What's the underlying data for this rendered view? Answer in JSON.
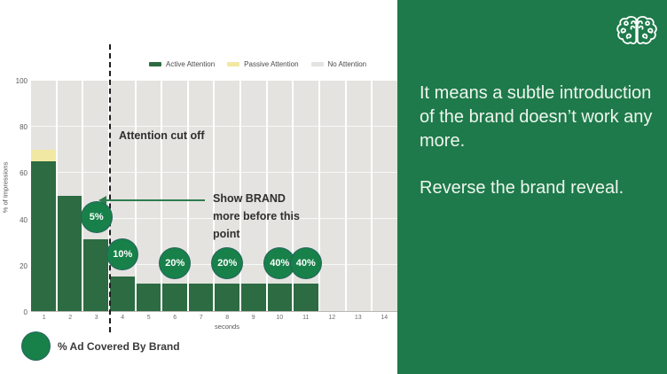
{
  "right_panel": {
    "bg_color": "#1e7a4a",
    "paragraph1": "It means a subtle introduction of the brand doesn’t work any more.",
    "paragraph2": "Reverse the brand reveal.",
    "logo": "brain-knot-logo"
  },
  "annotations": {
    "cutoff_label": "Attention cut off",
    "brand_note": "Show BRAND more before this point",
    "bottom_legend_label": "% Ad Covered By Brand"
  },
  "chart_data": {
    "type": "bar",
    "title": "",
    "xlabel": "seconds",
    "ylabel": "% of Impressions",
    "ylim": [
      0,
      100
    ],
    "yticks": [
      0,
      20,
      40,
      60,
      80,
      100
    ],
    "grid": "horizontal, white, every 20",
    "legend_position": "top",
    "categories": [
      "1",
      "2",
      "3",
      "4",
      "5",
      "6",
      "7",
      "8",
      "9",
      "10",
      "11",
      "12",
      "13",
      "14"
    ],
    "series": [
      {
        "name": "Active Attention",
        "color": "#2d6b42",
        "values": [
          65,
          50,
          31,
          15,
          12,
          12,
          12,
          12,
          12,
          12,
          12,
          0,
          0,
          0
        ]
      },
      {
        "name": "Passive Attention",
        "color": "#f1e8a3",
        "values": [
          5,
          0,
          0,
          0,
          0,
          0,
          0,
          0,
          0,
          0,
          0,
          0,
          0,
          0
        ]
      },
      {
        "name": "No Attention",
        "color": "#e4e3df",
        "values": [
          30,
          50,
          69,
          85,
          88,
          88,
          88,
          88,
          88,
          88,
          88,
          100,
          100,
          100
        ]
      }
    ],
    "cutoff_x": 3.5,
    "brand_coverage_markers": [
      {
        "x": 3,
        "y": 41,
        "label": "5%"
      },
      {
        "x": 4,
        "y": 25,
        "label": "10%"
      },
      {
        "x": 6,
        "y": 21,
        "label": "20%"
      },
      {
        "x": 8,
        "y": 21,
        "label": "20%"
      },
      {
        "x": 10,
        "y": 21,
        "label": "40%"
      },
      {
        "x": 11,
        "y": 21,
        "label": "40%"
      }
    ]
  }
}
